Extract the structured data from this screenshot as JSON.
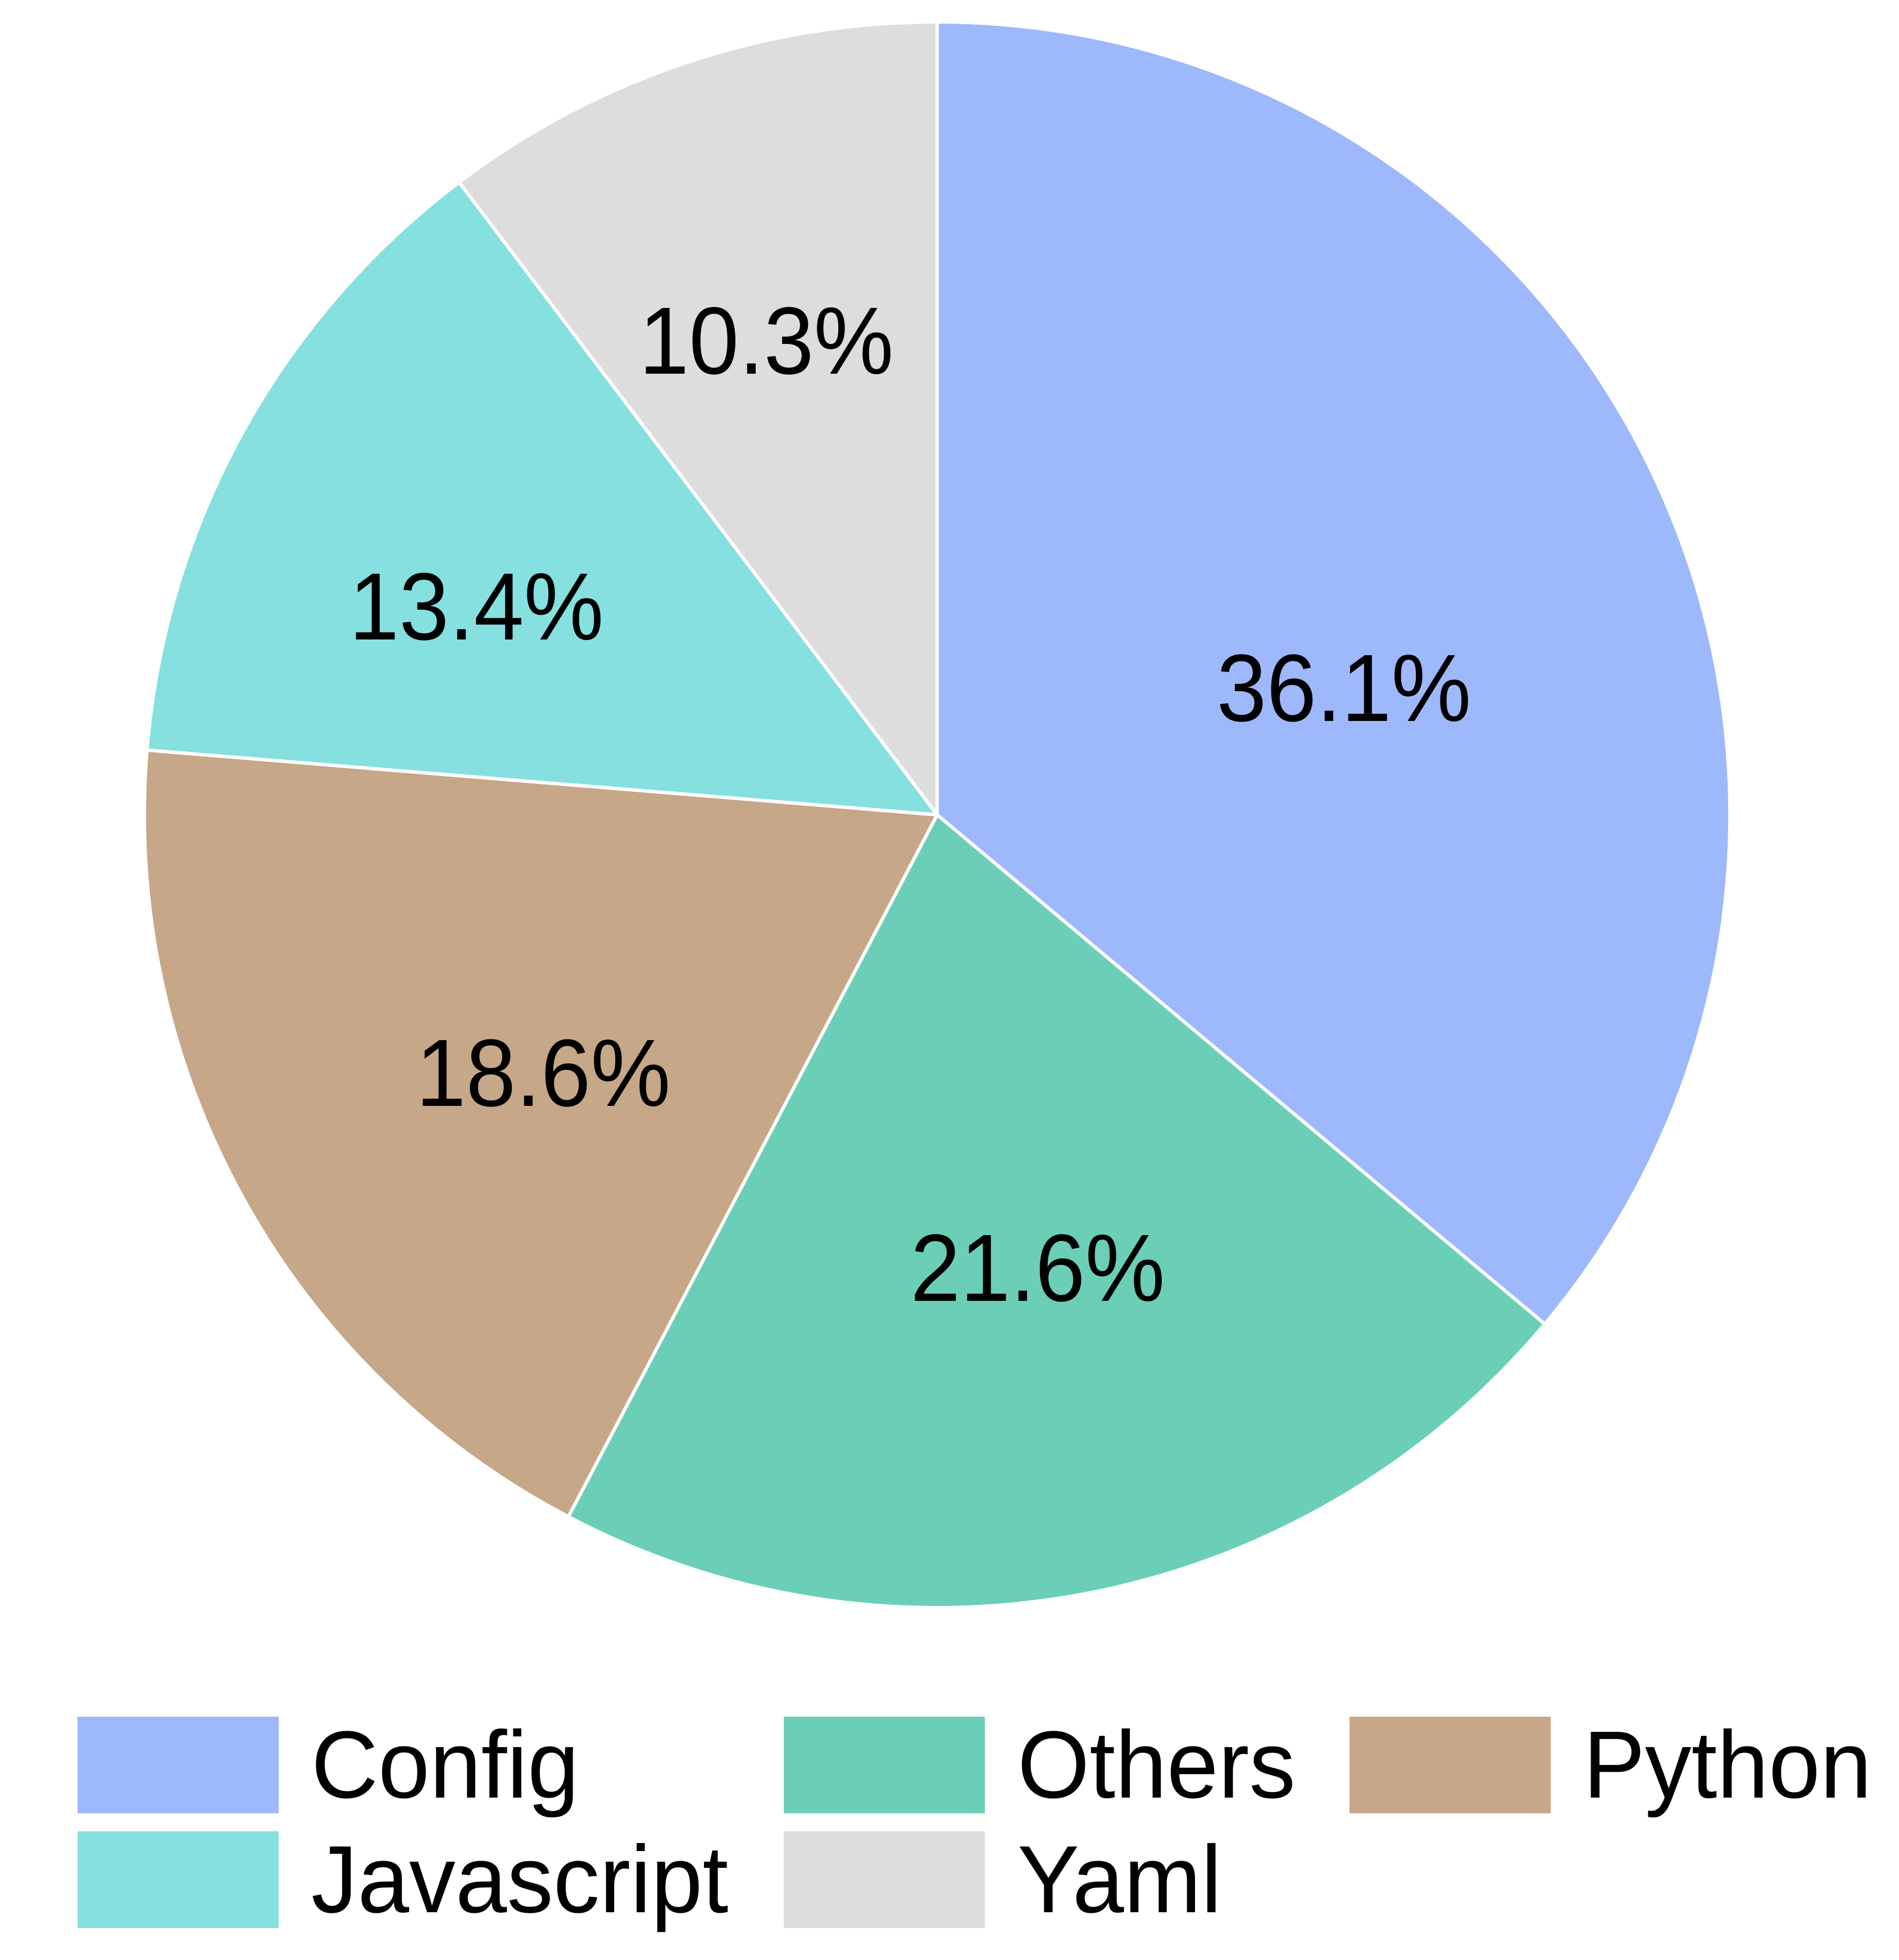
{
  "chart_data": {
    "type": "pie",
    "title": "",
    "start_angle": "90 (12 o'clock), clockwise",
    "categories": [
      "Config",
      "Others",
      "Python",
      "Javascript",
      "Yaml"
    ],
    "values": [
      36.1,
      21.6,
      18.6,
      13.4,
      10.3
    ],
    "labels": [
      "36.1%",
      "21.6%",
      "18.6%",
      "13.4%",
      "10.3%"
    ],
    "colors": [
      "#9EB8FC",
      "#6BCFB8",
      "#C6A787",
      "#85E0DF",
      "#DDDDDD"
    ],
    "wedge_edge_color": "#FFFFFF",
    "legend": {
      "position": "bottom",
      "ncol": 3,
      "entries": [
        {
          "label": "Config",
          "color": "#9EB8FC"
        },
        {
          "label": "Others",
          "color": "#6BCFB8"
        },
        {
          "label": "Python",
          "color": "#C6A787"
        },
        {
          "label": "Javascript",
          "color": "#85E0DF"
        },
        {
          "label": "Yaml",
          "color": "#DDDDDD"
        }
      ]
    }
  }
}
